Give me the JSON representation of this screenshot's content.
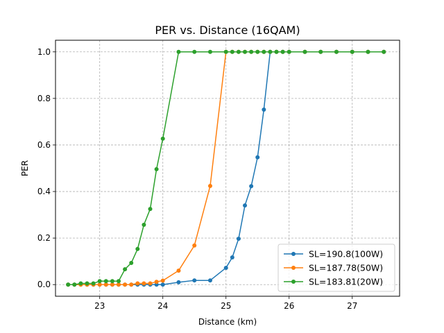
{
  "chart_data": {
    "type": "line",
    "title": "PER vs. Distance (16QAM)",
    "xlabel": "Distance (km)",
    "ylabel": "PER",
    "xlim": [
      22.3,
      27.75
    ],
    "ylim": [
      -0.05,
      1.05
    ],
    "xticks": [
      23,
      24,
      25,
      26,
      27
    ],
    "yticks": [
      0.0,
      0.2,
      0.4,
      0.6,
      0.8,
      1.0
    ],
    "xtick_labels": [
      "23",
      "24",
      "25",
      "26",
      "27"
    ],
    "ytick_labels": [
      "0.0",
      "0.2",
      "0.4",
      "0.6",
      "0.8",
      "1.0"
    ],
    "grid": true,
    "legend_position": "lower-right",
    "series": [
      {
        "name": "SL=190.8(100W)",
        "color": "#1f77b4",
        "x": [
          22.5,
          22.6,
          22.7,
          22.8,
          22.9,
          23.0,
          23.1,
          23.2,
          23.3,
          23.4,
          23.5,
          23.6,
          23.7,
          23.8,
          23.9,
          24.0,
          24.25,
          24.5,
          24.75,
          25.0,
          25.1,
          25.2,
          25.3,
          25.4,
          25.5,
          25.6,
          25.7,
          25.8,
          25.9,
          26.0,
          26.25,
          26.5,
          26.75,
          27.0,
          27.25,
          27.5
        ],
        "y": [
          0.0,
          0.0,
          0.0,
          0.0,
          0.0,
          0.0,
          0.0,
          0.0,
          0.0,
          0.0,
          0.0,
          0.0,
          0.0,
          0.0,
          0.0,
          0.0,
          0.01,
          0.018,
          0.018,
          0.072,
          0.117,
          0.197,
          0.34,
          0.423,
          0.547,
          0.752,
          1.0,
          1.0,
          1.0,
          1.0,
          1.0,
          1.0,
          1.0,
          1.0,
          1.0,
          1.0
        ]
      },
      {
        "name": "SL=187.78(50W)",
        "color": "#ff7f0e",
        "x": [
          22.5,
          22.6,
          22.7,
          22.8,
          22.9,
          23.0,
          23.1,
          23.2,
          23.3,
          23.4,
          23.5,
          23.6,
          23.7,
          23.8,
          23.9,
          24.0,
          24.25,
          24.5,
          24.75,
          25.0,
          25.1,
          25.2,
          25.3,
          25.4,
          25.5,
          25.6,
          25.7,
          25.8,
          25.9,
          26.0,
          26.25,
          26.5,
          26.75,
          27.0,
          27.25,
          27.5
        ],
        "y": [
          0.0,
          0.0,
          0.0,
          0.0,
          0.0,
          0.0,
          0.0,
          0.0,
          0.0,
          0.0,
          0.0,
          0.005,
          0.005,
          0.005,
          0.012,
          0.017,
          0.06,
          0.168,
          0.424,
          1.0,
          1.0,
          1.0,
          1.0,
          1.0,
          1.0,
          1.0,
          1.0,
          1.0,
          1.0,
          1.0,
          1.0,
          1.0,
          1.0,
          1.0,
          1.0,
          1.0
        ]
      },
      {
        "name": "SL=183.81(20W)",
        "color": "#2ca02c",
        "x": [
          22.5,
          22.6,
          22.7,
          22.8,
          22.9,
          23.0,
          23.1,
          23.2,
          23.3,
          23.4,
          23.5,
          23.6,
          23.7,
          23.8,
          23.9,
          24.0,
          24.25,
          24.5,
          24.75,
          25.0,
          25.1,
          25.2,
          25.3,
          25.4,
          25.5,
          25.6,
          25.7,
          25.8,
          25.9,
          26.0,
          26.25,
          26.5,
          26.75,
          27.0,
          27.25,
          27.5
        ],
        "y": [
          0.0,
          0.0,
          0.005,
          0.005,
          0.005,
          0.015,
          0.015,
          0.015,
          0.015,
          0.066,
          0.093,
          0.153,
          0.257,
          0.325,
          0.496,
          0.627,
          1.0,
          1.0,
          1.0,
          1.0,
          1.0,
          1.0,
          1.0,
          1.0,
          1.0,
          1.0,
          1.0,
          1.0,
          1.0,
          1.0,
          1.0,
          1.0,
          1.0,
          1.0,
          1.0,
          1.0
        ]
      }
    ]
  }
}
